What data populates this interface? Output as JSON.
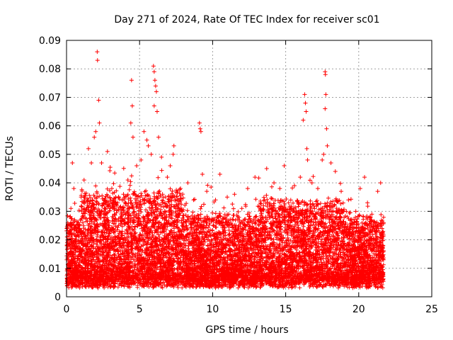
{
  "chart_data": {
    "type": "scatter",
    "title": "Day 271 of 2024, Rate Of TEC Index for receiver sc01",
    "xlabel": "GPS time / hours",
    "ylabel": "ROTI / TECUs",
    "xlim": [
      0,
      25
    ],
    "ylim": [
      0,
      0.09
    ],
    "x_ticks": [
      "0",
      "5",
      "10",
      "15",
      "20",
      "25"
    ],
    "y_ticks": [
      "0",
      "0.01",
      "0.02",
      "0.03",
      "0.04",
      "0.05",
      "0.06",
      "0.07",
      "0.08",
      "0.09"
    ],
    "x_tick_values": [
      0,
      5,
      10,
      15,
      20,
      25
    ],
    "y_tick_values": [
      0,
      0.01,
      0.02,
      0.03,
      0.04,
      0.05,
      0.06,
      0.07,
      0.08,
      0.09
    ],
    "grid": true,
    "marker": "+",
    "color": "#ff0000",
    "data_x_range": [
      0,
      21.7
    ],
    "typical_range": [
      0.005,
      0.03
    ],
    "points": [
      {
        "x": 0.1,
        "y": 0.005
      },
      {
        "x": 0.2,
        "y": 0.022
      },
      {
        "x": 0.3,
        "y": 0.031
      },
      {
        "x": 0.4,
        "y": 0.047
      },
      {
        "x": 0.5,
        "y": 0.038
      },
      {
        "x": 0.8,
        "y": 0.026
      },
      {
        "x": 1.0,
        "y": 0.035
      },
      {
        "x": 1.2,
        "y": 0.041
      },
      {
        "x": 1.5,
        "y": 0.052
      },
      {
        "x": 1.7,
        "y": 0.047
      },
      {
        "x": 1.9,
        "y": 0.056
      },
      {
        "x": 2.0,
        "y": 0.058
      },
      {
        "x": 2.1,
        "y": 0.086
      },
      {
        "x": 2.12,
        "y": 0.083
      },
      {
        "x": 2.2,
        "y": 0.069
      },
      {
        "x": 2.25,
        "y": 0.061
      },
      {
        "x": 2.4,
        "y": 0.047
      },
      {
        "x": 2.8,
        "y": 0.051
      },
      {
        "x": 3.1,
        "y": 0.038
      },
      {
        "x": 3.5,
        "y": 0.033
      },
      {
        "x": 3.9,
        "y": 0.036
      },
      {
        "x": 4.2,
        "y": 0.041
      },
      {
        "x": 4.4,
        "y": 0.061
      },
      {
        "x": 4.45,
        "y": 0.076
      },
      {
        "x": 4.5,
        "y": 0.067
      },
      {
        "x": 4.55,
        "y": 0.056
      },
      {
        "x": 4.8,
        "y": 0.046
      },
      {
        "x": 5.1,
        "y": 0.048
      },
      {
        "x": 5.3,
        "y": 0.058
      },
      {
        "x": 5.5,
        "y": 0.055
      },
      {
        "x": 5.6,
        "y": 0.053
      },
      {
        "x": 5.8,
        "y": 0.05
      },
      {
        "x": 5.95,
        "y": 0.081
      },
      {
        "x": 6.0,
        "y": 0.079
      },
      {
        "x": 6.05,
        "y": 0.076
      },
      {
        "x": 6.1,
        "y": 0.074
      },
      {
        "x": 6.0,
        "y": 0.067
      },
      {
        "x": 6.15,
        "y": 0.072
      },
      {
        "x": 6.2,
        "y": 0.065
      },
      {
        "x": 6.3,
        "y": 0.056
      },
      {
        "x": 6.5,
        "y": 0.049
      },
      {
        "x": 6.9,
        "y": 0.042
      },
      {
        "x": 7.1,
        "y": 0.046
      },
      {
        "x": 7.3,
        "y": 0.05
      },
      {
        "x": 7.35,
        "y": 0.053
      },
      {
        "x": 7.8,
        "y": 0.038
      },
      {
        "x": 8.3,
        "y": 0.04
      },
      {
        "x": 8.7,
        "y": 0.034
      },
      {
        "x": 9.1,
        "y": 0.061
      },
      {
        "x": 9.15,
        "y": 0.059
      },
      {
        "x": 9.2,
        "y": 0.058
      },
      {
        "x": 9.3,
        "y": 0.043
      },
      {
        "x": 9.6,
        "y": 0.037
      },
      {
        "x": 10.2,
        "y": 0.034
      },
      {
        "x": 10.5,
        "y": 0.043
      },
      {
        "x": 11.0,
        "y": 0.035
      },
      {
        "x": 11.5,
        "y": 0.036
      },
      {
        "x": 12.0,
        "y": 0.031
      },
      {
        "x": 12.4,
        "y": 0.038
      },
      {
        "x": 12.9,
        "y": 0.042
      },
      {
        "x": 13.3,
        "y": 0.028
      },
      {
        "x": 13.7,
        "y": 0.045
      },
      {
        "x": 14.2,
        "y": 0.04
      },
      {
        "x": 14.6,
        "y": 0.038
      },
      {
        "x": 14.9,
        "y": 0.046
      },
      {
        "x": 15.2,
        "y": 0.033
      },
      {
        "x": 15.6,
        "y": 0.039
      },
      {
        "x": 16.0,
        "y": 0.042
      },
      {
        "x": 16.2,
        "y": 0.062
      },
      {
        "x": 16.3,
        "y": 0.071
      },
      {
        "x": 16.35,
        "y": 0.068
      },
      {
        "x": 16.4,
        "y": 0.065
      },
      {
        "x": 16.45,
        "y": 0.052
      },
      {
        "x": 16.5,
        "y": 0.048
      },
      {
        "x": 16.8,
        "y": 0.04
      },
      {
        "x": 17.2,
        "y": 0.038
      },
      {
        "x": 17.5,
        "y": 0.048
      },
      {
        "x": 17.6,
        "y": 0.05
      },
      {
        "x": 17.7,
        "y": 0.079
      },
      {
        "x": 17.72,
        "y": 0.078
      },
      {
        "x": 17.75,
        "y": 0.071
      },
      {
        "x": 17.7,
        "y": 0.066
      },
      {
        "x": 17.8,
        "y": 0.059
      },
      {
        "x": 17.85,
        "y": 0.053
      },
      {
        "x": 18.1,
        "y": 0.047
      },
      {
        "x": 18.4,
        "y": 0.044
      },
      {
        "x": 18.8,
        "y": 0.037
      },
      {
        "x": 19.3,
        "y": 0.034
      },
      {
        "x": 19.8,
        "y": 0.03
      },
      {
        "x": 20.1,
        "y": 0.038
      },
      {
        "x": 20.4,
        "y": 0.042
      },
      {
        "x": 20.6,
        "y": 0.033
      },
      {
        "x": 20.9,
        "y": 0.029
      },
      {
        "x": 21.3,
        "y": 0.037
      },
      {
        "x": 21.5,
        "y": 0.04
      },
      {
        "x": 21.6,
        "y": 0.024
      },
      {
        "x": 21.7,
        "y": 0.013
      }
    ]
  }
}
